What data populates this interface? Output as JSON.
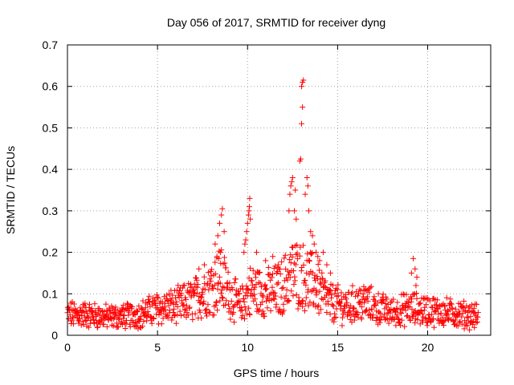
{
  "chart_data": {
    "type": "scatter",
    "title": "Day 056 of 2017, SRMTID for receiver dyng",
    "xlabel": "GPS time / hours",
    "ylabel": "SRMTID / TECUs",
    "xlim": [
      0,
      23.5
    ],
    "ylim": [
      0,
      0.7
    ],
    "grid": true,
    "marker": "+",
    "color": "#ff0000",
    "x_ticks": [
      0,
      5,
      10,
      15,
      20
    ],
    "y_ticks": [
      0,
      0.1,
      0.2,
      0.3,
      0.4,
      0.5,
      0.6,
      0.7
    ],
    "x_tick_labels": [
      "0",
      "5",
      "10",
      "15",
      "20"
    ],
    "y_tick_labels": [
      "0",
      "0.1",
      "0.2",
      "0.3",
      "0.4",
      "0.5",
      "0.6",
      "0.7"
    ],
    "series": [
      {
        "name": "SRMTID",
        "trend": [
          [
            0.0,
            0.05
          ],
          [
            1.0,
            0.05
          ],
          [
            2.0,
            0.045
          ],
          [
            3.0,
            0.045
          ],
          [
            4.0,
            0.05
          ],
          [
            5.0,
            0.065
          ],
          [
            6.0,
            0.07
          ],
          [
            7.0,
            0.085
          ],
          [
            7.8,
            0.11
          ],
          [
            8.5,
            0.14
          ],
          [
            9.0,
            0.1
          ],
          [
            9.6,
            0.07
          ],
          [
            10.2,
            0.11
          ],
          [
            11.0,
            0.1
          ],
          [
            11.8,
            0.11
          ],
          [
            12.5,
            0.15
          ],
          [
            13.2,
            0.14
          ],
          [
            13.8,
            0.12
          ],
          [
            14.5,
            0.08
          ],
          [
            15.5,
            0.07
          ],
          [
            16.5,
            0.08
          ],
          [
            17.2,
            0.065
          ],
          [
            18.0,
            0.055
          ],
          [
            19.0,
            0.065
          ],
          [
            20.0,
            0.06
          ],
          [
            21.0,
            0.055
          ],
          [
            22.0,
            0.05
          ],
          [
            22.8,
            0.045
          ]
        ],
        "highlights": [
          [
            8.2,
            0.22
          ],
          [
            8.35,
            0.24
          ],
          [
            8.45,
            0.27
          ],
          [
            8.55,
            0.29
          ],
          [
            8.6,
            0.305
          ],
          [
            8.7,
            0.25
          ],
          [
            8.5,
            0.2
          ],
          [
            8.3,
            0.19
          ],
          [
            9.8,
            0.2
          ],
          [
            9.9,
            0.23
          ],
          [
            9.95,
            0.25
          ],
          [
            10.0,
            0.27
          ],
          [
            10.05,
            0.29
          ],
          [
            10.08,
            0.3
          ],
          [
            10.1,
            0.31
          ],
          [
            10.12,
            0.33
          ],
          [
            10.15,
            0.28
          ],
          [
            9.85,
            0.22
          ],
          [
            12.3,
            0.3
          ],
          [
            12.35,
            0.34
          ],
          [
            12.4,
            0.36
          ],
          [
            12.45,
            0.37
          ],
          [
            12.5,
            0.38
          ],
          [
            12.6,
            0.3
          ],
          [
            12.7,
            0.28
          ],
          [
            12.65,
            0.35
          ],
          [
            12.9,
            0.42
          ],
          [
            12.95,
            0.425
          ],
          [
            13.0,
            0.51
          ],
          [
            13.05,
            0.55
          ],
          [
            13.0,
            0.6
          ],
          [
            13.05,
            0.61
          ],
          [
            13.1,
            0.615
          ],
          [
            13.3,
            0.38
          ],
          [
            13.35,
            0.36
          ],
          [
            13.2,
            0.34
          ],
          [
            13.4,
            0.3
          ],
          [
            13.5,
            0.25
          ],
          [
            13.6,
            0.24
          ],
          [
            13.7,
            0.22
          ],
          [
            13.8,
            0.2
          ],
          [
            13.9,
            0.19
          ],
          [
            14.0,
            0.18
          ],
          [
            14.2,
            0.2
          ],
          [
            14.4,
            0.17
          ],
          [
            14.6,
            0.15
          ],
          [
            19.2,
            0.185
          ],
          [
            19.3,
            0.16
          ],
          [
            19.4,
            0.14
          ],
          [
            19.1,
            0.15
          ],
          [
            19.35,
            0.12
          ],
          [
            7.3,
            0.16
          ],
          [
            7.6,
            0.17
          ],
          [
            11.0,
            0.18
          ],
          [
            11.4,
            0.19
          ],
          [
            11.7,
            0.17
          ],
          [
            10.5,
            0.2
          ]
        ]
      }
    ]
  }
}
